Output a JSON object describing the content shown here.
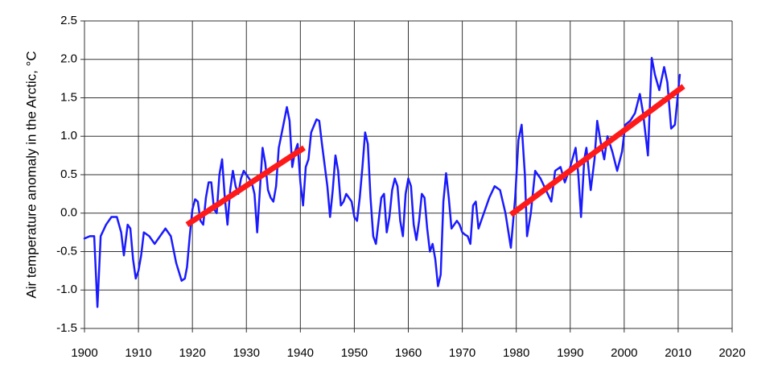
{
  "chart_data": {
    "type": "line",
    "y_label": "Air temperature anomaly in the Arctic, °C",
    "xlim": [
      1900,
      2020
    ],
    "ylim": [
      -1.5,
      2.5
    ],
    "xticks": [
      1900,
      1910,
      1920,
      1930,
      1940,
      1950,
      1960,
      1970,
      1980,
      1990,
      2000,
      2010,
      2020
    ],
    "yticks": [
      2.5,
      {
        "value": 2,
        "label": "2.0"
      },
      1.5,
      {
        "value": 1,
        "label": "1.0"
      },
      0.5,
      {
        "value": 0,
        "label": "0.0"
      },
      -0.5,
      {
        "value": -1,
        "label": "-1.0"
      },
      -1.5
    ],
    "grid": true,
    "series": [
      {
        "color": "#1a1aff",
        "width": 2.5,
        "x": [
          1900,
          1901,
          1901.8,
          1902.4,
          1903,
          1904,
          1905,
          1906,
          1906.8,
          1907.3,
          1908,
          1908.5,
          1909,
          1909.5,
          1910,
          1910.5,
          1911,
          1912,
          1913,
          1914,
          1915,
          1916,
          1917,
          1918,
          1918.6,
          1919,
          1919.5,
          1920,
          1920.5,
          1921,
          1921.5,
          1922,
          1922.5,
          1923,
          1923.5,
          1924,
          1924.5,
          1925,
          1925.5,
          1926,
          1926.5,
          1927,
          1927.5,
          1928,
          1928.5,
          1929,
          1929.5,
          1930,
          1931,
          1931.5,
          1932,
          1932.5,
          1933,
          1933.5,
          1934,
          1934.5,
          1935,
          1935.5,
          1936,
          1937,
          1937.5,
          1938,
          1938.5,
          1939,
          1939.5,
          1940,
          1940.5,
          1941,
          1941.5,
          1942,
          1943,
          1943.5,
          1944,
          1945,
          1945.5,
          1946,
          1946.5,
          1947,
          1947.5,
          1948,
          1948.5,
          1949,
          1949.5,
          1950,
          1950.5,
          1951,
          1951.5,
          1952,
          1952.5,
          1953,
          1953.5,
          1954,
          1954.5,
          1955,
          1955.5,
          1956,
          1956.5,
          1957,
          1957.5,
          1958,
          1958.5,
          1959,
          1959.5,
          1960,
          1960.5,
          1961,
          1961.5,
          1962,
          1962.5,
          1963,
          1963.5,
          1964,
          1964.5,
          1965,
          1965.5,
          1966,
          1966.5,
          1967,
          1967.5,
          1968,
          1968.5,
          1969,
          1969.5,
          1970,
          1970.5,
          1971,
          1971.5,
          1972,
          1972.5,
          1973,
          1974,
          1975,
          1976,
          1977,
          1978,
          1979,
          1979.8,
          1980.4,
          1981,
          1981.6,
          1982,
          1982.7,
          1983.5,
          1984.5,
          1985.5,
          1986.5,
          1987.2,
          1988.2,
          1989,
          1990,
          1991,
          1991.5,
          1992,
          1992.6,
          1993,
          1993.8,
          1994.5,
          1995,
          1995.7,
          1996.3,
          1996.9,
          1997.8,
          1998.7,
          1999.6,
          2000.2,
          2001.1,
          2002,
          2002.9,
          2003.5,
          2004.4,
          2005.1,
          2005.7,
          2006.5,
          2007.4,
          2008,
          2008.7,
          2009.4,
          2010.3
        ],
        "values": [
          -0.33,
          -0.3,
          -0.3,
          -1.22,
          -0.3,
          -0.15,
          -0.05,
          -0.05,
          -0.25,
          -0.55,
          -0.15,
          -0.2,
          -0.6,
          -0.85,
          -0.75,
          -0.55,
          -0.25,
          -0.3,
          -0.4,
          -0.3,
          -0.2,
          -0.3,
          -0.65,
          -0.88,
          -0.85,
          -0.7,
          -0.3,
          0.05,
          0.18,
          0.15,
          -0.1,
          -0.15,
          0.2,
          0.4,
          0.4,
          0.05,
          0,
          0.5,
          0.7,
          0.2,
          -0.15,
          0.3,
          0.55,
          0.35,
          0.25,
          0.45,
          0.55,
          0.5,
          0.4,
          0.25,
          -0.25,
          0.3,
          0.85,
          0.65,
          0.3,
          0.2,
          0.15,
          0.35,
          0.85,
          1.2,
          1.38,
          1.2,
          0.6,
          0.8,
          0.9,
          0.4,
          0.1,
          0.6,
          0.7,
          1.05,
          1.22,
          1.2,
          0.9,
          0.35,
          -0.05,
          0.3,
          0.75,
          0.55,
          0.1,
          0.15,
          0.25,
          0.2,
          0.15,
          -0.05,
          -0.1,
          0.2,
          0.6,
          1.05,
          0.9,
          0.2,
          -0.3,
          -0.4,
          -0.1,
          0.2,
          0.25,
          -0.25,
          -0.05,
          0.3,
          0.45,
          0.35,
          -0.1,
          -0.3,
          0.25,
          0.45,
          0.35,
          -0.15,
          -0.35,
          -0.1,
          0.25,
          0.2,
          -0.2,
          -0.5,
          -0.4,
          -0.6,
          -0.95,
          -0.8,
          0.15,
          0.52,
          0.2,
          -0.2,
          -0.15,
          -0.1,
          -0.15,
          -0.25,
          -0.28,
          -0.3,
          -0.4,
          0.1,
          0.15,
          -0.2,
          0,
          0.2,
          0.35,
          0.3,
          0,
          -0.45,
          0.2,
          0.95,
          1.15,
          0.5,
          -0.3,
          0,
          0.55,
          0.45,
          0.3,
          0.15,
          0.55,
          0.6,
          0.4,
          0.6,
          0.85,
          0.5,
          -0.05,
          0.7,
          0.85,
          0.3,
          0.7,
          1.2,
          0.9,
          0.7,
          1.0,
          0.8,
          0.55,
          0.8,
          1.15,
          1.2,
          1.3,
          1.55,
          1.3,
          0.75,
          2.02,
          1.8,
          1.6,
          1.9,
          1.7,
          1.1,
          1.15,
          1.8
        ]
      },
      {
        "color": "#ff1a1a",
        "width": 7,
        "x": [
          1919,
          1940.7
        ],
        "values": [
          -0.15,
          0.85
        ]
      },
      {
        "color": "#ff1a1a",
        "width": 7,
        "x": [
          1979,
          2011
        ],
        "values": [
          -0.02,
          1.65
        ]
      }
    ]
  }
}
